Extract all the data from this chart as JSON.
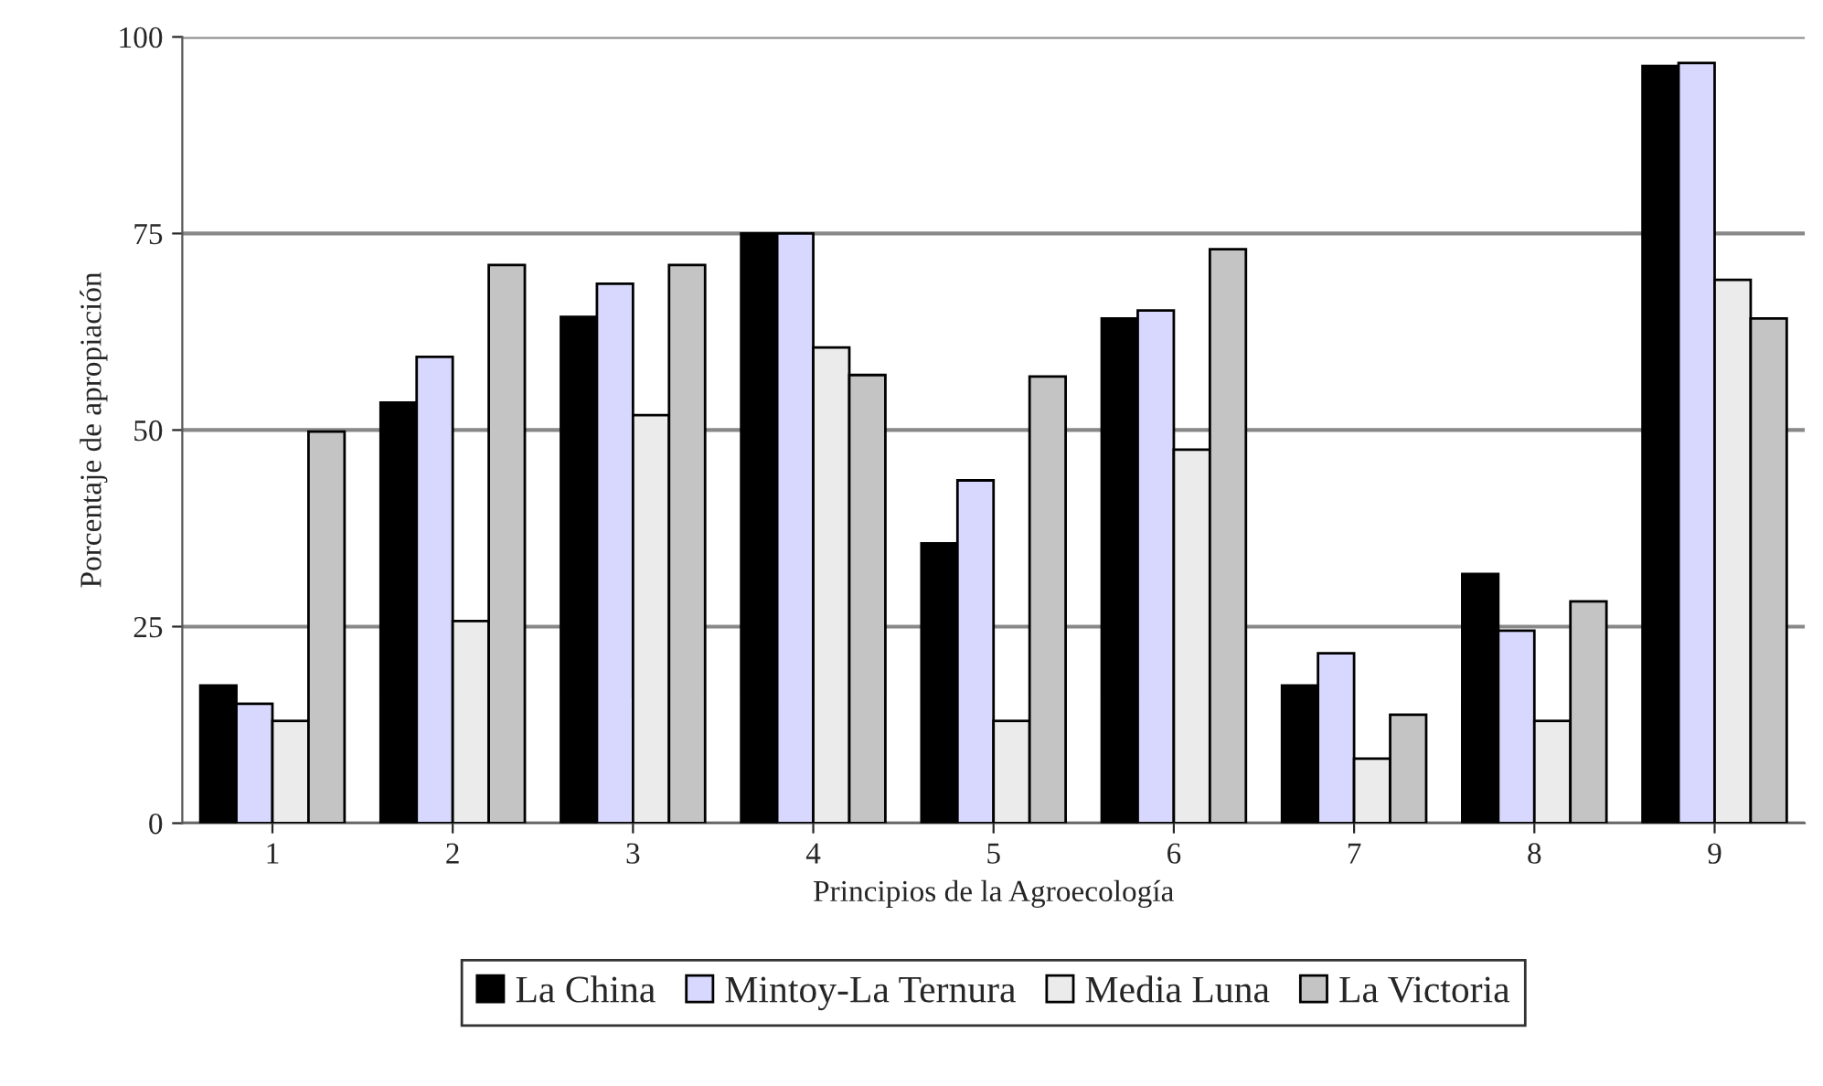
{
  "chart_data": {
    "type": "bar",
    "xlabel": "Principios de la Agroecología",
    "ylabel": "Porcentaje de apropiación",
    "categories": [
      "1",
      "2",
      "3",
      "4",
      "5",
      "6",
      "7",
      "8",
      "9"
    ],
    "series": [
      {
        "name": "La China",
        "color": "#000000",
        "values": [
          17.5,
          53.5,
          64.4,
          75,
          35.6,
          64.2,
          17.5,
          31.7,
          96.3
        ]
      },
      {
        "name": "Mintoy-La Ternura",
        "color": "#d8d8ff",
        "values": [
          15.2,
          59.3,
          68.6,
          75,
          43.6,
          65.2,
          21.6,
          24.5,
          96.7
        ]
      },
      {
        "name": "Media Luna",
        "color": "#ebebeb",
        "values": [
          13,
          25.7,
          51.9,
          60.5,
          13,
          47.5,
          8.2,
          13,
          69.1
        ]
      },
      {
        "name": "La Victoria",
        "color": "#c4c4c4",
        "values": [
          49.8,
          71,
          71,
          57,
          56.8,
          73,
          13.8,
          28.2,
          64.2
        ]
      }
    ],
    "ylim": [
      0,
      100
    ],
    "yticks": [
      0,
      25,
      50,
      75,
      100
    ],
    "grid": "y",
    "legend": "bottom"
  }
}
